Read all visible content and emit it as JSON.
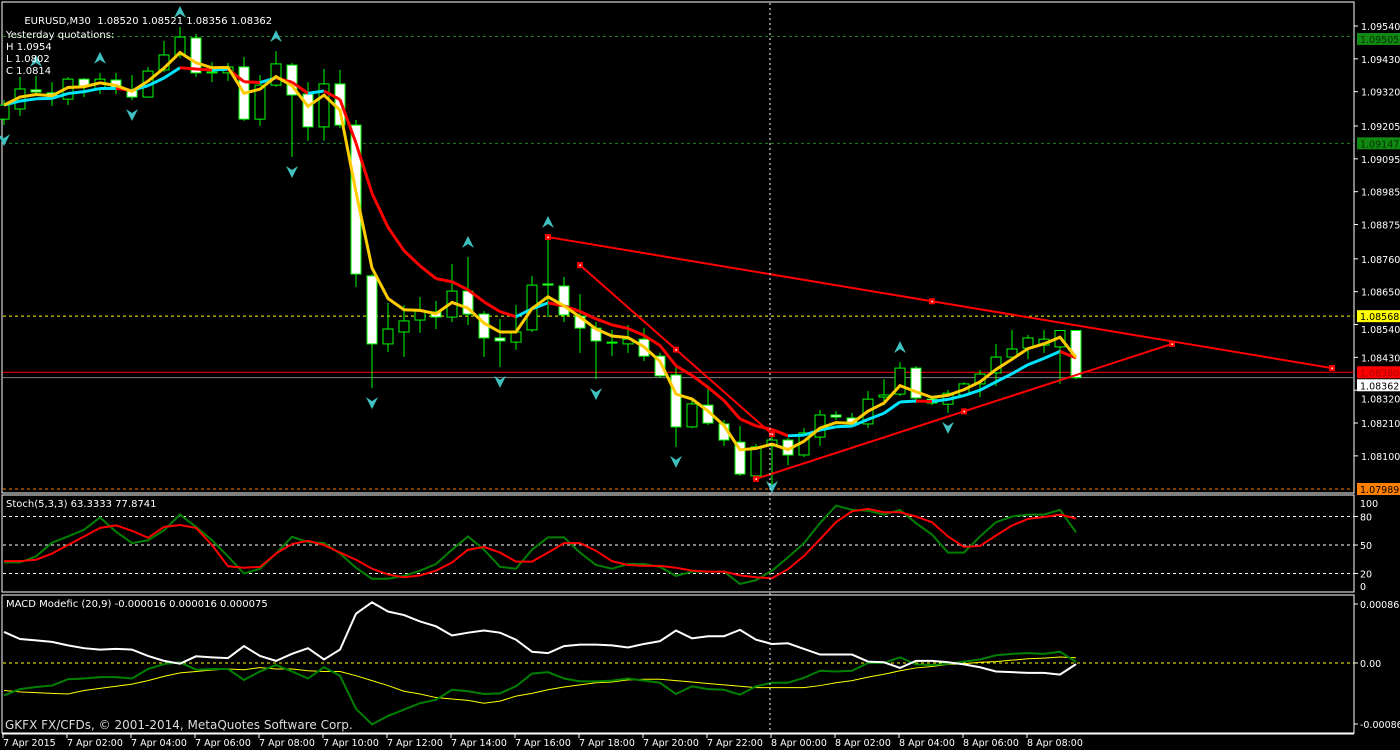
{
  "header": {
    "symbol": "EURUSD,M30",
    "quote": "1.08520 1.08521 1.08356 1.08362"
  },
  "yesterday": {
    "title": "Yesterday quotations:",
    "high": "H 1.0954",
    "low": "L 1.0802",
    "close": "C 1.0814"
  },
  "stoch_label": "Stoch(5,3,3) 63.3333 77.8741",
  "macd_label": "MACD Modefic (20,9) -0.000016 0.000016 0.000075",
  "copyright": "GKFX FX/CFDs, © 2001-2014, MetaQuotes Software Corp.",
  "colors": {
    "bull_border": "#00ff00",
    "bear_body": "#ffffff",
    "fast_ma": "#ffcc00",
    "slow_ma_up": "#00e5ff",
    "slow_ma_down": "#ff0000",
    "fractal": "#40c0c0",
    "trendline": "#ff0000",
    "stoch_main": "#008000",
    "stoch_signal": "#ff0000",
    "macd_main": "#ffffff",
    "macd_signal": "#008000",
    "macd_third": "#ffff00"
  },
  "chart_data": {
    "type": "candlestick",
    "timeframe": "M30",
    "price_axis": {
      "range": [
        1.07989,
        1.0954
      ],
      "labels": [
        "1.09540",
        "1.09430",
        "1.09320",
        "1.09205",
        "1.09095",
        "1.08985",
        "1.08875",
        "1.08760",
        "1.08650",
        "1.08540",
        "1.08430",
        "1.08320",
        "1.08210",
        "1.08100"
      ]
    },
    "time_labels": [
      "7 Apr 2015",
      "7 Apr 02:00",
      "7 Apr 04:00",
      "7 Apr 06:00",
      "7 Apr 08:00",
      "7 Apr 10:00",
      "7 Apr 12:00",
      "7 Apr 14:00",
      "7 Apr 16:00",
      "7 Apr 18:00",
      "7 Apr 20:00",
      "7 Apr 22:00",
      "8 Apr 00:00",
      "8 Apr 02:00",
      "8 Apr 04:00",
      "8 Apr 06:00",
      "8 Apr 08:00"
    ],
    "candles_ohlc": [
      [
        1.09228,
        1.09292,
        1.09208,
        1.09275
      ],
      [
        1.09262,
        1.09369,
        1.09239,
        1.09329
      ],
      [
        1.09326,
        1.09373,
        1.09309,
        1.09319
      ],
      [
        1.09316,
        1.09352,
        1.09272,
        1.09302
      ],
      [
        1.09295,
        1.09369,
        1.09275,
        1.09362
      ],
      [
        1.09362,
        1.09366,
        1.09302,
        1.09339
      ],
      [
        1.09329,
        1.09383,
        1.09312,
        1.09362
      ],
      [
        1.09359,
        1.09383,
        1.09312,
        1.09332
      ],
      [
        1.09326,
        1.09376,
        1.09292,
        1.09302
      ],
      [
        1.09302,
        1.09403,
        1.093,
        1.09389
      ],
      [
        1.09393,
        1.0949,
        1.09386,
        1.09443
      ],
      [
        1.09443,
        1.09537,
        1.09433,
        1.09503
      ],
      [
        1.095,
        1.09513,
        1.09369,
        1.09383
      ],
      [
        1.09386,
        1.09419,
        1.09352,
        1.09383
      ],
      [
        1.09383,
        1.09416,
        1.09356,
        1.09403
      ],
      [
        1.09403,
        1.09436,
        1.09222,
        1.09228
      ],
      [
        1.09228,
        1.09376,
        1.09205,
        1.09342
      ],
      [
        1.09342,
        1.09456,
        1.09336,
        1.09413
      ],
      [
        1.09409,
        1.09416,
        1.09101,
        1.09309
      ],
      [
        1.09312,
        1.09352,
        1.09155,
        1.09202
      ],
      [
        1.09202,
        1.09396,
        1.09155,
        1.09346
      ],
      [
        1.09346,
        1.09393,
        1.09198,
        1.09208
      ],
      [
        1.09208,
        1.09225,
        1.08666,
        1.08709
      ],
      [
        1.08703,
        1.08709,
        1.08327,
        1.08475
      ],
      [
        1.08475,
        1.08612,
        1.08448,
        1.08525
      ],
      [
        1.08515,
        1.08605,
        1.08431,
        1.08552
      ],
      [
        1.08555,
        1.08632,
        1.08512,
        1.08585
      ],
      [
        1.08582,
        1.08619,
        1.08525,
        1.08565
      ],
      [
        1.08565,
        1.08743,
        1.08548,
        1.08652
      ],
      [
        1.08652,
        1.08766,
        1.08538,
        1.08575
      ],
      [
        1.08575,
        1.08585,
        1.08431,
        1.08495
      ],
      [
        1.08495,
        1.08558,
        1.08398,
        1.08485
      ],
      [
        1.08481,
        1.08605,
        1.08455,
        1.08515
      ],
      [
        1.08522,
        1.08703,
        1.08515,
        1.08672
      ],
      [
        1.08676,
        1.08833,
        1.08565,
        1.08672
      ],
      [
        1.08669,
        1.08699,
        1.08548,
        1.08572
      ],
      [
        1.08568,
        1.08642,
        1.08445,
        1.08528
      ],
      [
        1.08528,
        1.08548,
        1.08357,
        1.08485
      ],
      [
        1.08481,
        1.08522,
        1.08434,
        1.08478
      ],
      [
        1.08475,
        1.08538,
        1.08445,
        1.08491
      ],
      [
        1.08491,
        1.08528,
        1.08418,
        1.08434
      ],
      [
        1.08434,
        1.08445,
        1.08361,
        1.08368
      ],
      [
        1.08371,
        1.08408,
        1.0813,
        1.08197
      ],
      [
        1.08197,
        1.08287,
        1.08193,
        1.08274
      ],
      [
        1.0827,
        1.08337,
        1.08203,
        1.0821
      ],
      [
        1.08207,
        1.0822,
        1.08133,
        1.08153
      ],
      [
        1.08146,
        1.082,
        1.08033,
        1.08039
      ],
      [
        1.08033,
        1.0814,
        1.08026,
        1.0813
      ],
      [
        1.08133,
        1.0817,
        1.07986,
        1.08153
      ],
      [
        1.08153,
        1.0816,
        1.08069,
        1.08103
      ],
      [
        1.08103,
        1.08193,
        1.08096,
        1.08177
      ],
      [
        1.08163,
        1.08254,
        1.08133,
        1.08237
      ],
      [
        1.08237,
        1.0825,
        1.0822,
        1.0823
      ],
      [
        1.08227,
        1.08244,
        1.082,
        1.08207
      ],
      [
        1.08207,
        1.08317,
        1.08193,
        1.0829
      ],
      [
        1.08297,
        1.08357,
        1.0827,
        1.08304
      ],
      [
        1.08307,
        1.08414,
        1.083,
        1.08394
      ],
      [
        1.08394,
        1.08401,
        1.08277,
        1.08294
      ],
      [
        1.0829,
        1.08297,
        1.0827,
        1.08277
      ],
      [
        1.08273,
        1.08321,
        1.08244,
        1.0831
      ],
      [
        1.08304,
        1.08347,
        1.08297,
        1.08341
      ],
      [
        1.08341,
        1.08388,
        1.08297,
        1.08374
      ],
      [
        1.08378,
        1.08475,
        1.08334,
        1.08431
      ],
      [
        1.08431,
        1.08522,
        1.08424,
        1.08458
      ],
      [
        1.08461,
        1.08505,
        1.08424,
        1.08495
      ],
      [
        1.08471,
        1.08522,
        1.08445,
        1.08491
      ],
      [
        1.08465,
        1.08522,
        1.08341,
        1.0852
      ],
      [
        1.0852,
        1.08521,
        1.08356,
        1.08362
      ]
    ],
    "fractals": [
      {
        "bar": 2,
        "dir": "up"
      },
      {
        "bar": 6,
        "dir": "up"
      },
      {
        "bar": 11,
        "dir": "up"
      },
      {
        "bar": 17,
        "dir": "up"
      },
      {
        "bar": 29,
        "dir": "up"
      },
      {
        "bar": 34,
        "dir": "up"
      },
      {
        "bar": 56,
        "dir": "up"
      },
      {
        "bar": 0,
        "dir": "down"
      },
      {
        "bar": 8,
        "dir": "down"
      },
      {
        "bar": 18,
        "dir": "down"
      },
      {
        "bar": 23,
        "dir": "down"
      },
      {
        "bar": 31,
        "dir": "down"
      },
      {
        "bar": 37,
        "dir": "down"
      },
      {
        "bar": 42,
        "dir": "down"
      },
      {
        "bar": 48,
        "dir": "down"
      },
      {
        "bar": 59,
        "dir": "down"
      }
    ],
    "trendlines": [
      {
        "from": {
          "bar": 34,
          "price": 1.08833
        },
        "to": {
          "bar": 83,
          "price": 1.08394
        },
        "markers": [
          34,
          58,
          83
        ]
      },
      {
        "from": {
          "bar": 36,
          "price": 1.08739
        },
        "to": {
          "bar": 48,
          "price": 1.08173
        },
        "markers": [
          36,
          42,
          48
        ]
      },
      {
        "from": {
          "bar": 47,
          "price": 1.08023
        },
        "to": {
          "bar": 73,
          "price": 1.08475
        },
        "markers": [
          47,
          60,
          73
        ]
      }
    ],
    "hlines": [
      {
        "price": 1.09505,
        "label": "1.09505",
        "style": "dashed",
        "color": "#1f7f1f",
        "label_bg": "#118811",
        "label_fg": "#003300"
      },
      {
        "price": 1.09147,
        "label": "1.09147",
        "style": "dashed",
        "color": "#1f7f1f",
        "label_bg": "#118811",
        "label_fg": "#003300"
      },
      {
        "price": 1.08568,
        "label": "1.08568",
        "style": "dashed",
        "color": "#ffff00",
        "label_bg": "#ffff00",
        "label_fg": "#000000"
      },
      {
        "price": 1.0838,
        "label": "1.08380",
        "style": "solid",
        "color": "#ff0000",
        "label_bg": "#ff0000",
        "label_fg": "#aa0000"
      },
      {
        "price": 1.08362,
        "label": "1.08362",
        "style": "solid",
        "color": "#808080",
        "label_bg": "#ffffff",
        "label_fg": "#000000"
      },
      {
        "price": 1.07989,
        "label": "1.07989",
        "style": "dashed",
        "color": "#ff8000",
        "label_bg": "#ff8000",
        "label_fg": "#000000"
      }
    ],
    "stoch": {
      "levels": [
        "100",
        "80",
        "50",
        "20",
        "0"
      ],
      "main": [
        31.7,
        31.7,
        38,
        52.4,
        59,
        66,
        79,
        64,
        52,
        55,
        65.5,
        82,
        69,
        55,
        38,
        20,
        25,
        41,
        58.6,
        53,
        52,
        41,
        26,
        14.5,
        14.5,
        17.5,
        23,
        30,
        45,
        59,
        45,
        27,
        25,
        45,
        58,
        58,
        42,
        29,
        25,
        30,
        30,
        27,
        17.5,
        22,
        22,
        22,
        9,
        13,
        23,
        37,
        52,
        73,
        91.5,
        87,
        86,
        82,
        87,
        73,
        61,
        42,
        42,
        59,
        74,
        80,
        82,
        82,
        87,
        63.3333
      ],
      "signal": [
        33,
        33,
        34.5,
        41,
        50,
        59,
        68,
        70.7,
        65,
        57.6,
        69,
        71,
        68,
        50,
        27.6,
        26,
        27,
        41,
        51,
        54.5,
        50,
        42,
        34.5,
        25,
        19,
        16,
        18,
        23,
        31.5,
        45,
        48,
        42,
        32.5,
        32.5,
        42,
        52,
        52,
        44,
        33,
        29,
        28,
        28,
        26,
        23,
        22,
        22,
        18,
        16,
        15,
        24.5,
        38.5,
        56,
        74,
        85.5,
        88,
        84.5,
        84.5,
        80,
        74,
        59,
        48,
        49,
        60,
        70.5,
        77.5,
        79.5,
        82,
        77.8741
      ]
    },
    "macd": {
      "axis_labels": [
        "0.000865",
        "0.00",
        "-0.000865"
      ],
      "range": [
        -0.000865,
        0.000865
      ],
      "main": [
        0.00044,
        0.00034,
        0.00032,
        0.0003,
        0.00025,
        0.00021,
        0.00019,
        0.0002,
        0.00019,
        0.0001,
        3e-05,
        -1e-05,
        9.5e-05,
        8e-05,
        7e-05,
        0.00024,
        0.0001,
        3e-05,
        0.00013,
        0.00021,
        5e-05,
        0.00019,
        0.0007,
        0.00086,
        0.00073,
        0.00068,
        0.00059,
        0.00052,
        0.00039,
        0.00043,
        0.00046,
        0.00043,
        0.00033,
        0.00016,
        0.00014,
        0.00024,
        0.00026,
        0.00026,
        0.00025,
        0.00022,
        0.00027,
        0.00031,
        0.00046,
        0.00035,
        0.00038,
        0.00038,
        0.00047,
        0.00033,
        0.00027,
        0.00028,
        0.0002,
        0.00012,
        0.00012,
        0.00012,
        2e-05,
        1e-05,
        -7e-05,
        3e-05,
        3e-05,
        1e-05,
        -2e-05,
        -6e-05,
        -0.00012,
        -0.00013,
        -0.00014,
        -0.00014,
        -0.000165,
        -1.6e-05
      ],
      "signal": [
        -0.00046,
        -0.00037,
        -0.00034,
        -0.00032,
        -0.00023,
        -0.00022,
        -0.0002,
        -0.0002,
        -0.00022,
        -8.5e-05,
        -1.5e-05,
        1e-05,
        -9.5e-05,
        -8.5e-05,
        -8.5e-05,
        -0.00024,
        -0.00012,
        -3e-05,
        -0.00012,
        -0.00022,
        -6e-05,
        -0.00018,
        -0.00065,
        -0.00087,
        -0.00075,
        -0.00066,
        -0.00057,
        -0.00052,
        -0.00038,
        -0.0004,
        -0.00044,
        -0.00043,
        -0.00033,
        -0.00015,
        -0.00013,
        -0.00022,
        -0.00026,
        -0.00026,
        -0.00025,
        -0.00022,
        -0.00025,
        -0.00028,
        -0.00044,
        -0.00033,
        -0.00037,
        -0.00038,
        -0.00045,
        -0.00033,
        -0.00028,
        -0.00028,
        -0.00021,
        -0.00011,
        -0.00012,
        -0.00011,
        0,
        0,
        8e-05,
        -2e-05,
        -3e-05,
        -1e-05,
        2e-05,
        5e-05,
        0.00011,
        0.00013,
        0.00014,
        0.00013,
        0.00016,
        1.6e-05
      ],
      "third": [
        -0.00039,
        -0.00041,
        -0.00042,
        -0.00043,
        -0.00044,
        -0.00039,
        -0.00036,
        -0.00033,
        -0.0003,
        -0.00025,
        -0.00019,
        -0.00014,
        -0.00012,
        -0.0001,
        -8.5e-05,
        -9.5e-05,
        -6.5e-05,
        -8.5e-05,
        -8.5e-05,
        -0.00011,
        -0.00012,
        -0.00012,
        -0.00018,
        -0.00025,
        -0.00032,
        -0.0004,
        -0.00044,
        -0.00049,
        -0.00051,
        -0.00053,
        -0.00057,
        -0.00054,
        -0.00047,
        -0.00043,
        -0.00038,
        -0.00034,
        -0.00031,
        -0.00028,
        -0.00027,
        -0.00024,
        -0.00023,
        -0.00023,
        -0.00025,
        -0.00027,
        -0.00029,
        -0.00031,
        -0.00033,
        -0.00035,
        -0.00035,
        -0.00035,
        -0.00035,
        -0.00032,
        -0.00028,
        -0.00025,
        -0.0002,
        -0.00016,
        -0.00011,
        -7e-05,
        -5e-05,
        -2e-05,
        -1e-05,
        1e-05,
        2e-05,
        4e-05,
        6e-05,
        7e-05,
        8.5e-05,
        7.5e-05
      ]
    }
  }
}
